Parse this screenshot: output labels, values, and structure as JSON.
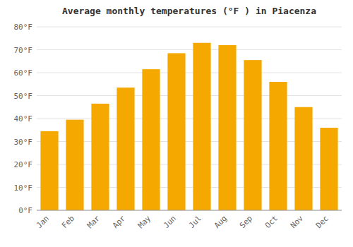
{
  "chart_data": {
    "type": "bar",
    "title": "Average monthly temperatures (°F ) in Piacenza",
    "categories": [
      "Jan",
      "Feb",
      "Mar",
      "Apr",
      "May",
      "Jun",
      "Jul",
      "Aug",
      "Sep",
      "Oct",
      "Nov",
      "Dec"
    ],
    "values": [
      34.5,
      39.5,
      46.5,
      53.5,
      61.5,
      68.5,
      73.0,
      72.0,
      65.5,
      56.0,
      45.0,
      36.0
    ],
    "color": "#F5A800",
    "ylim": [
      0,
      80
    ],
    "yticks": [
      {
        "value": 0,
        "label": "0°F"
      },
      {
        "value": 10,
        "label": "10°F"
      },
      {
        "value": 20,
        "label": "20°F"
      },
      {
        "value": 30,
        "label": "30°F"
      },
      {
        "value": 40,
        "label": "40°F"
      },
      {
        "value": 50,
        "label": "50°F"
      },
      {
        "value": 60,
        "label": "60°F"
      },
      {
        "value": 70,
        "label": "70°F"
      },
      {
        "value": 80,
        "label": "80°F"
      }
    ],
    "grid": true
  }
}
